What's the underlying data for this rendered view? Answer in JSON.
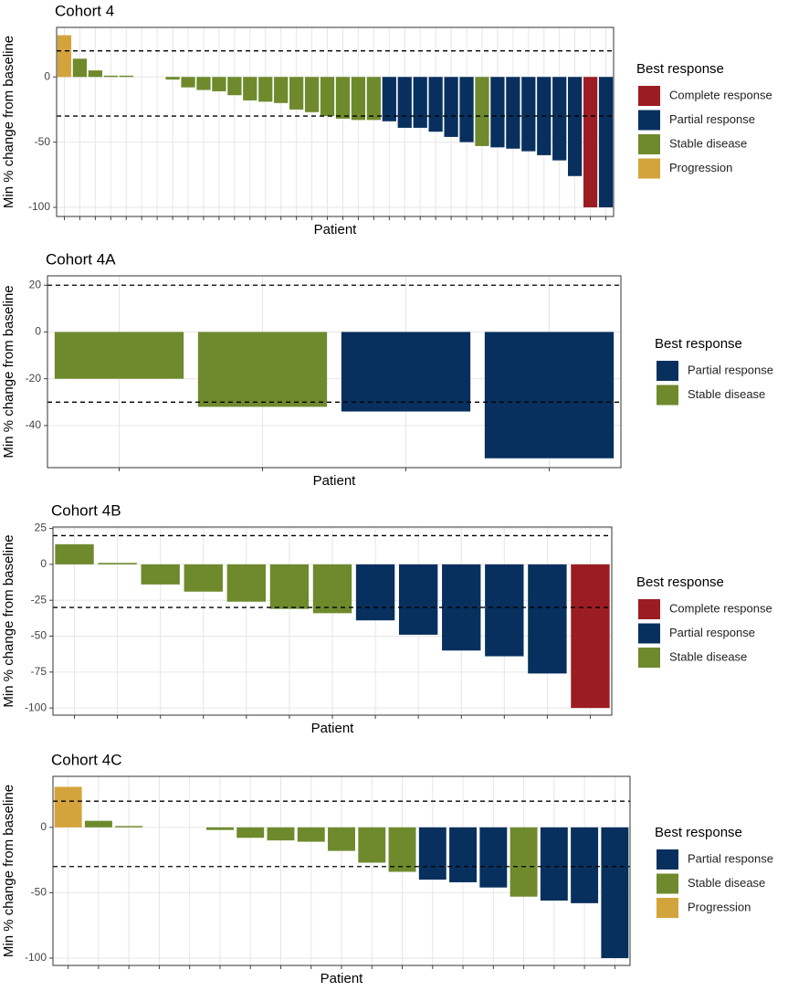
{
  "chart_data": [
    {
      "type": "bar",
      "title": "Cohort 4",
      "x_label": "Patient",
      "y_label": "Min % change from baseline",
      "legend_title": "Best response",
      "legend_position": "right",
      "grid": true,
      "categories": [
        null,
        null,
        null,
        null,
        null,
        null,
        null,
        null,
        null,
        null,
        null,
        null,
        null,
        null,
        null,
        null,
        null,
        null,
        null,
        null,
        null,
        null,
        null,
        null,
        null,
        null,
        null,
        null,
        null,
        null,
        null,
        null,
        null,
        null,
        null,
        null
      ],
      "series": [
        {
          "name": "Complete response",
          "color": "#9b1c22",
          "values": [
            null,
            null,
            null,
            null,
            null,
            null,
            null,
            null,
            null,
            null,
            null,
            null,
            null,
            null,
            null,
            null,
            null,
            null,
            null,
            null,
            null,
            null,
            null,
            null,
            null,
            null,
            null,
            null,
            null,
            null,
            null,
            null,
            null,
            null,
            -100,
            null
          ]
        },
        {
          "name": "Partial response",
          "color": "#08305e",
          "values": [
            null,
            null,
            null,
            null,
            null,
            null,
            null,
            null,
            null,
            null,
            null,
            null,
            null,
            null,
            null,
            null,
            null,
            null,
            null,
            null,
            null,
            -34,
            -39,
            -39,
            -42,
            -46,
            -50,
            null,
            -54,
            -55,
            -57,
            -60,
            -64,
            -76,
            null,
            -100
          ]
        },
        {
          "name": "Stable disease",
          "color": "#6e8a2c",
          "values": [
            null,
            14,
            5,
            1,
            1,
            0,
            0,
            -2,
            -8,
            -10,
            -11,
            -14,
            -18,
            -19,
            -20,
            -25,
            -27,
            -30,
            -32,
            -33,
            -33,
            null,
            null,
            null,
            null,
            null,
            null,
            -53,
            null,
            null,
            null,
            null,
            null,
            null,
            null,
            null
          ]
        },
        {
          "name": "Progression",
          "color": "#d4a43c",
          "values": [
            32,
            null,
            null,
            null,
            null,
            null,
            null,
            null,
            null,
            null,
            null,
            null,
            null,
            null,
            null,
            null,
            null,
            null,
            null,
            null,
            null,
            null,
            null,
            null,
            null,
            null,
            null,
            null,
            null,
            null,
            null,
            null,
            null,
            null,
            null,
            null
          ]
        }
      ],
      "reference_lines": [
        20,
        -30
      ],
      "ylim": [
        -107,
        38
      ],
      "yticks": [
        -100,
        -50,
        0
      ]
    },
    {
      "type": "bar",
      "title": "Cohort 4A",
      "x_label": "Patient",
      "y_label": "Min % change from baseline",
      "legend_title": "Best response",
      "legend_position": "right",
      "grid": true,
      "categories": [
        null,
        null,
        null,
        null
      ],
      "series": [
        {
          "name": "Partial response",
          "color": "#08305e",
          "values": [
            null,
            null,
            -34,
            -54
          ]
        },
        {
          "name": "Stable disease",
          "color": "#6e8a2c",
          "values": [
            -20,
            -32,
            null,
            null
          ]
        }
      ],
      "reference_lines": [
        20,
        -30
      ],
      "ylim": [
        -58,
        24
      ],
      "yticks": [
        -40,
        -20,
        0,
        20
      ]
    },
    {
      "type": "bar",
      "title": "Cohort 4B",
      "x_label": "Patient",
      "y_label": "Min % change from baseline",
      "legend_title": "Best response",
      "legend_position": "right",
      "grid": true,
      "categories": [
        null,
        null,
        null,
        null,
        null,
        null,
        null,
        null,
        null,
        null,
        null,
        null,
        null
      ],
      "series": [
        {
          "name": "Complete response",
          "color": "#9b1c22",
          "values": [
            null,
            null,
            null,
            null,
            null,
            null,
            null,
            null,
            null,
            null,
            null,
            null,
            -100
          ]
        },
        {
          "name": "Partial response",
          "color": "#08305e",
          "values": [
            null,
            null,
            null,
            null,
            null,
            null,
            null,
            -39,
            -49,
            -60,
            -64,
            -76,
            null
          ]
        },
        {
          "name": "Stable disease",
          "color": "#6e8a2c",
          "values": [
            14,
            1,
            -14,
            -19,
            -26,
            -31,
            -34,
            null,
            null,
            null,
            null,
            null,
            null
          ]
        }
      ],
      "reference_lines": [
        20,
        -30
      ],
      "ylim": [
        -105,
        26
      ],
      "yticks": [
        -100,
        -75,
        -50,
        -25,
        0,
        25
      ]
    },
    {
      "type": "bar",
      "title": "Cohort 4C",
      "x_label": "Patient",
      "y_label": "Min % change from baseline",
      "legend_title": "Best response",
      "legend_position": "right",
      "grid": true,
      "categories": [
        null,
        null,
        null,
        null,
        null,
        null,
        null,
        null,
        null,
        null,
        null,
        null,
        null,
        null,
        null,
        null,
        null,
        null,
        null
      ],
      "series": [
        {
          "name": "Partial response",
          "color": "#08305e",
          "values": [
            null,
            null,
            null,
            null,
            null,
            null,
            null,
            null,
            null,
            null,
            null,
            null,
            -40,
            -42,
            -46,
            null,
            -56,
            -58,
            -100
          ]
        },
        {
          "name": "Stable disease",
          "color": "#6e8a2c",
          "values": [
            null,
            5,
            1,
            0,
            0,
            -2,
            -8,
            -10,
            -11,
            -18,
            -27,
            -34,
            null,
            null,
            null,
            -53,
            null,
            null,
            null
          ]
        },
        {
          "name": "Progression",
          "color": "#d4a43c",
          "values": [
            31,
            null,
            null,
            null,
            null,
            null,
            null,
            null,
            null,
            null,
            null,
            null,
            null,
            null,
            null,
            null,
            null,
            null,
            null
          ]
        }
      ],
      "reference_lines": [
        20,
        -30
      ],
      "ylim": [
        -105.6,
        39
      ],
      "yticks": [
        -100,
        -50,
        0
      ]
    }
  ]
}
